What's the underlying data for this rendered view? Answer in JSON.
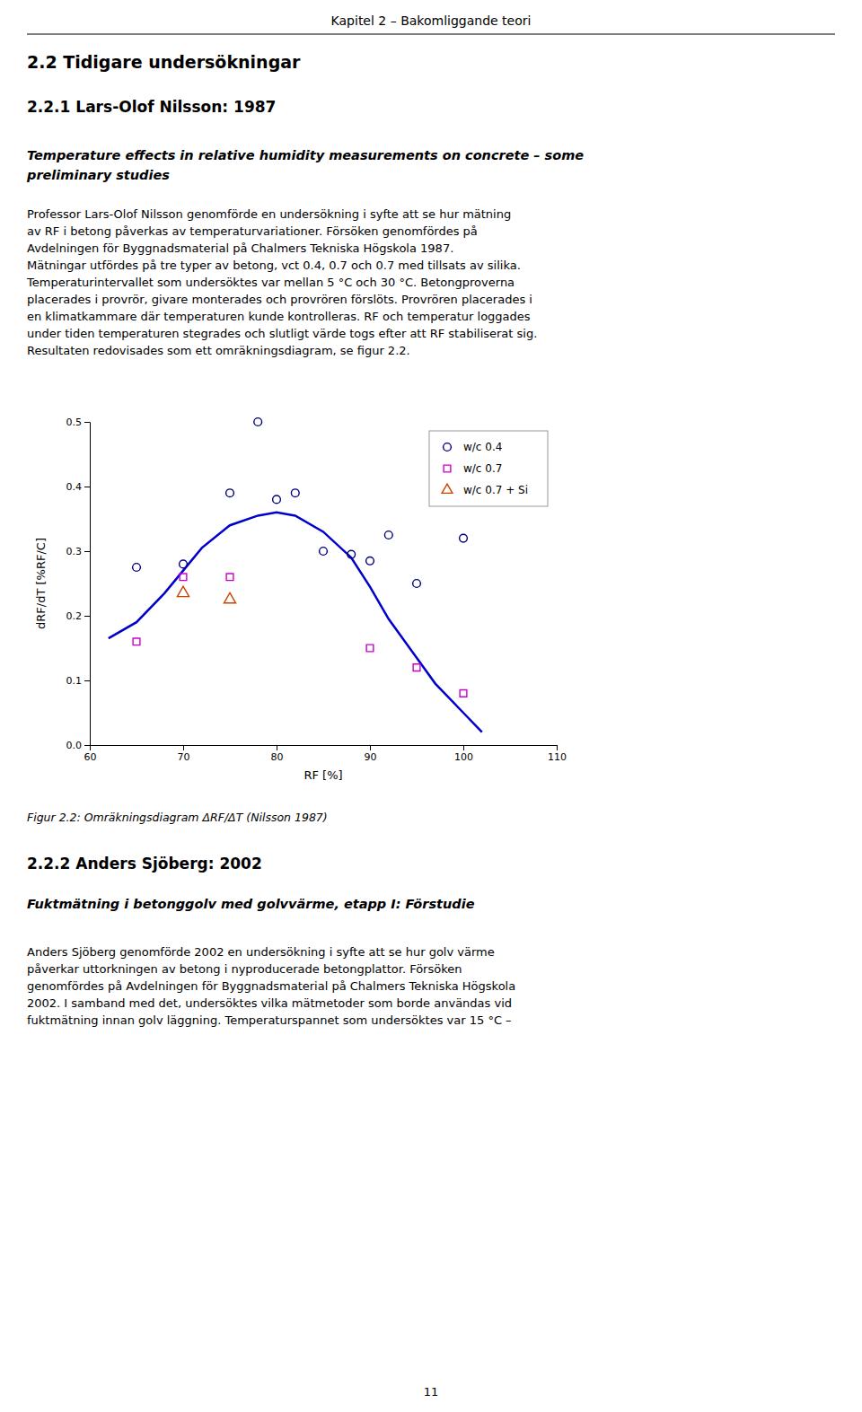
{
  "page": {
    "page_title": "Kapitel 2 – Bakomliggande teori",
    "section_header": "2.2 Tidigare undersökningar",
    "subsection_header": "2.2.1 Lars-Olof Nilsson: 1987",
    "italic_title": [
      "Temperature effects in relative humidity measurements on concrete – some",
      "preliminary studies"
    ],
    "body1_lines": [
      "Professor Lars-Olof Nilsson genomförde en undersökning i syfte att se hur mätning",
      "av RF i betong påverkas av temperaturvariationer. Försöken genomfördes på",
      "Avdelningen för Byggnadsmaterial på Chalmers Tekniska Högskola 1987.",
      "Mätningar utfördes på tre typer av betong, vct 0.4, 0.7 och 0.7 med tillsats av silika.",
      "Temperaturintervallet som undersöktes var mellan 5 °C och 30 °C. Betongproverna",
      "placerades i provrör, givare monterades och provrören förslöts. Provrören placerades i",
      "en klimatkammare där temperaturen kunde kontrolleras. RF och temperatur loggades",
      "under tiden temperaturen stegrades och slutligt värde togs efter att RF stabiliserat sig.",
      "Resultaten redovisades som ett omräkningsdiagram, se figur 2.2."
    ],
    "fig_caption": "Figur 2.2: Omräkningsdiagram ΔRF/ΔT (Nilsson 1987)",
    "section2_header": "2.2.2 Anders Sjöberg: 2002",
    "italic_title2": "Fuktmätning i betonggolv med golvvärme, etapp I: Förstudie",
    "body2_lines": [
      "Anders Sjöberg genomförde 2002 en undersökning i syfte att se hur golv värme",
      "påverkar uttorkningen av betong i nyproducerade betongplattor. Försöken",
      "genomfördes på Avdelningen för Byggnadsmaterial på Chalmers Tekniska Högskola",
      "2002. I samband med det, undersöktes vilka mätmetoder som borde användas vid",
      "fuktmätning innan golv läggning. Temperaturspannet som undersöktes var 15 °C –"
    ],
    "page_number": "11"
  },
  "chart_data": {
    "type": "scatter",
    "xlabel": "RF [%]",
    "ylabel": "dRF/dT [%RF/C]",
    "xlim": [
      60,
      110
    ],
    "ylim": [
      0,
      0.5
    ],
    "xticks": [
      60,
      70,
      80,
      90,
      100,
      110
    ],
    "yticks": [
      {
        "value": 0,
        "label": "0.0"
      },
      0.1,
      0.2,
      0.3,
      0.4,
      0.5
    ],
    "grid": false,
    "legend": "upper right",
    "series": [
      {
        "type": "line",
        "line_style": "solid",
        "color": "#0000CC",
        "x": [
          62,
          65,
          68,
          70,
          72,
          75,
          78,
          80,
          82,
          85,
          88,
          90,
          92,
          95,
          97,
          100,
          102
        ],
        "values": [
          0.165,
          0.19,
          0.235,
          0.27,
          0.305,
          0.34,
          0.355,
          0.36,
          0.355,
          0.33,
          0.29,
          0.245,
          0.195,
          0.135,
          0.095,
          0.05,
          0.02
        ]
      },
      {
        "name": "w/c 0.4",
        "type": "scatter",
        "marker": "circle",
        "color": "#000080",
        "x": [
          65,
          70,
          75,
          78,
          80,
          82,
          85,
          88,
          90,
          92,
          95,
          100
        ],
        "values": [
          0.275,
          0.28,
          0.39,
          0.5,
          0.38,
          0.39,
          0.3,
          0.295,
          0.285,
          0.325,
          0.25,
          0.32
        ]
      },
      {
        "name": "w/c 0.7",
        "type": "scatter",
        "marker": "square",
        "color": "#CC00CC",
        "x": [
          65,
          70,
          75,
          90,
          95,
          100
        ],
        "values": [
          0.16,
          0.26,
          0.26,
          0.15,
          0.12,
          0.08
        ]
      },
      {
        "name": "w/c 0.7 + Si",
        "type": "scatter",
        "marker": "triangle-up",
        "color": "#CC4400",
        "x": [
          70,
          75
        ],
        "values": [
          0.235,
          0.225
        ]
      }
    ]
  }
}
